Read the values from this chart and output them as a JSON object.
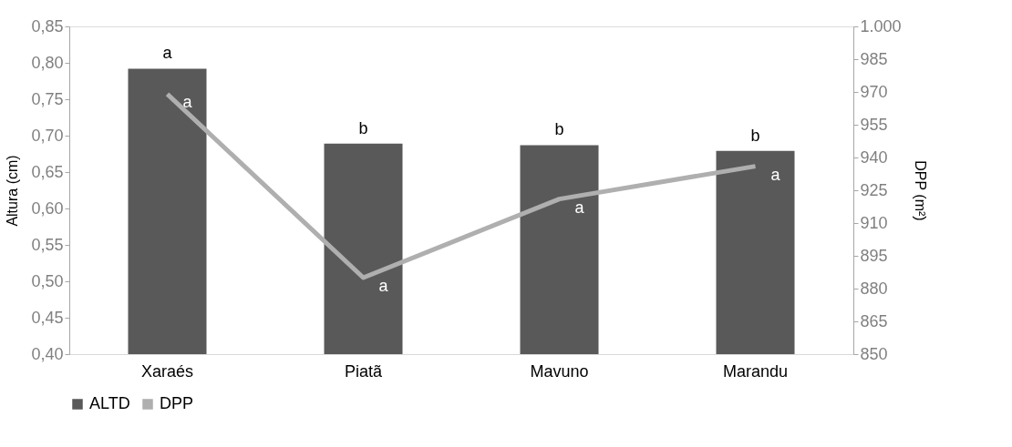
{
  "chart_data": {
    "type": "bar",
    "ylabel": "Altura (cm)",
    "y2label": "DPP (m²)",
    "categories": [
      "Xaraés",
      "Piatã",
      "Mavuno",
      "Marandu"
    ],
    "series": [
      {
        "name": "ALTD",
        "color": "#595959",
        "values": [
          0.792,
          0.689,
          0.687,
          0.679
        ],
        "value_labels": [
          "a",
          "b",
          "b",
          "b"
        ]
      },
      {
        "name": "DPP",
        "type": "line",
        "axis": "y2",
        "color": "#afafaf",
        "values": [
          969,
          885,
          921,
          936
        ],
        "value_labels": [
          "a",
          "a",
          "a",
          "a"
        ]
      }
    ],
    "ylim": [
      0.4,
      0.85
    ],
    "yticks": [
      {
        "value": 0.4,
        "label": "0,40"
      },
      {
        "value": 0.45,
        "label": "0,45"
      },
      {
        "value": 0.5,
        "label": "0,50"
      },
      {
        "value": 0.55,
        "label": "0,55"
      },
      {
        "value": 0.6,
        "label": "0,60"
      },
      {
        "value": 0.65,
        "label": "0,65"
      },
      {
        "value": 0.7,
        "label": "0,70"
      },
      {
        "value": 0.75,
        "label": "0,75"
      },
      {
        "value": 0.8,
        "label": "0,80"
      },
      {
        "value": 0.85,
        "label": "0,85"
      }
    ],
    "y2lim": [
      850,
      1000
    ],
    "y2ticks": [
      850,
      865,
      880,
      895,
      910,
      925,
      940,
      955,
      970,
      985,
      {
        "value": 1000,
        "label": "1.000"
      }
    ],
    "legend": "bottom",
    "grid": false,
    "marker": "none",
    "line_style": "solid"
  }
}
